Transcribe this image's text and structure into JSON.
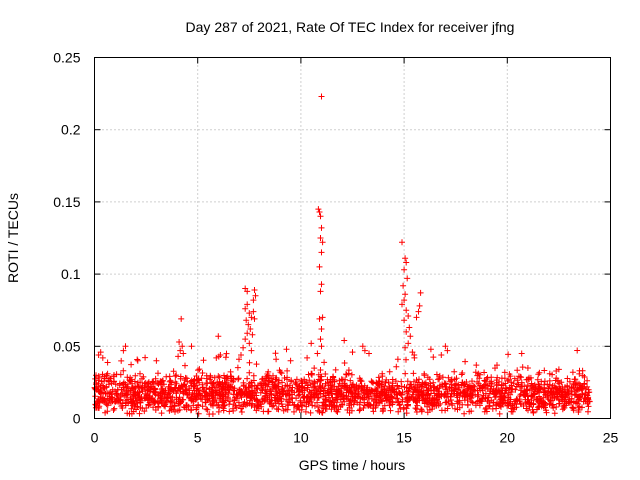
{
  "chart_data": {
    "type": "scatter",
    "title": "Day 287 of 2021, Rate Of TEC Index for receiver jfng",
    "xlabel": "GPS time / hours",
    "ylabel": "ROTI / TECUs",
    "xlim": [
      0,
      25
    ],
    "ylim": [
      0,
      0.25
    ],
    "xticks": [
      0,
      5,
      10,
      15,
      20,
      25
    ],
    "xtick_labels": [
      "0",
      "5",
      "10",
      "15",
      "20",
      "25"
    ],
    "yticks": [
      0,
      0.05,
      0.1,
      0.15,
      0.2,
      0.25
    ],
    "ytick_labels": [
      "0",
      "0.05",
      "0.1",
      "0.15",
      "0.2",
      "0.25"
    ],
    "grid": true,
    "marker": "+",
    "color": "#ff0000",
    "series": [
      {
        "name": "ROTI",
        "generated_background": {
          "x_range": [
            0,
            24
          ],
          "base": 0.017,
          "spread": 0.009,
          "count": 2200
        },
        "points": [
          [
            11.0,
            0.223
          ],
          [
            10.85,
            0.145
          ],
          [
            10.9,
            0.143
          ],
          [
            10.95,
            0.14
          ],
          [
            11.0,
            0.132
          ],
          [
            10.95,
            0.125
          ],
          [
            11.05,
            0.122
          ],
          [
            11.0,
            0.115
          ],
          [
            10.9,
            0.105
          ],
          [
            11.0,
            0.093
          ],
          [
            10.95,
            0.088
          ],
          [
            11.05,
            0.07
          ],
          [
            10.9,
            0.069
          ],
          [
            11.0,
            0.062
          ],
          [
            10.95,
            0.055
          ],
          [
            11.0,
            0.05
          ],
          [
            10.8,
            0.045
          ],
          [
            10.5,
            0.052
          ],
          [
            10.3,
            0.042
          ],
          [
            14.9,
            0.122
          ],
          [
            15.05,
            0.111
          ],
          [
            15.1,
            0.108
          ],
          [
            15.0,
            0.103
          ],
          [
            15.15,
            0.097
          ],
          [
            14.95,
            0.092
          ],
          [
            15.05,
            0.086
          ],
          [
            15.0,
            0.082
          ],
          [
            14.9,
            0.079
          ],
          [
            15.1,
            0.075
          ],
          [
            15.2,
            0.071
          ],
          [
            15.0,
            0.068
          ],
          [
            15.25,
            0.063
          ],
          [
            15.1,
            0.06
          ],
          [
            15.3,
            0.057
          ],
          [
            15.2,
            0.052
          ],
          [
            15.05,
            0.049
          ],
          [
            15.4,
            0.046
          ],
          [
            15.6,
            0.07
          ],
          [
            15.8,
            0.087
          ],
          [
            15.75,
            0.078
          ],
          [
            15.7,
            0.074
          ],
          [
            14.7,
            0.041
          ],
          [
            15.5,
            0.042
          ],
          [
            7.3,
            0.09
          ],
          [
            7.4,
            0.088
          ],
          [
            7.75,
            0.089
          ],
          [
            7.8,
            0.085
          ],
          [
            7.7,
            0.082
          ],
          [
            7.4,
            0.079
          ],
          [
            7.3,
            0.076
          ],
          [
            7.5,
            0.073
          ],
          [
            7.6,
            0.07
          ],
          [
            7.35,
            0.068
          ],
          [
            7.45,
            0.065
          ],
          [
            7.55,
            0.062
          ],
          [
            7.4,
            0.059
          ],
          [
            7.3,
            0.055
          ],
          [
            7.5,
            0.052
          ],
          [
            7.2,
            0.049
          ],
          [
            7.6,
            0.047
          ],
          [
            7.7,
            0.074
          ],
          [
            7.75,
            0.069
          ],
          [
            7.65,
            0.058
          ],
          [
            7.1,
            0.044
          ],
          [
            7.0,
            0.041
          ],
          [
            4.2,
            0.069
          ],
          [
            4.1,
            0.053
          ],
          [
            4.25,
            0.05
          ],
          [
            4.15,
            0.047
          ],
          [
            4.3,
            0.045
          ],
          [
            4.05,
            0.043
          ],
          [
            6.0,
            0.057
          ],
          [
            6.1,
            0.044
          ],
          [
            5.9,
            0.042
          ],
          [
            4.7,
            0.05
          ],
          [
            12.1,
            0.054
          ],
          [
            13.0,
            0.05
          ],
          [
            13.1,
            0.047
          ],
          [
            12.5,
            0.046
          ],
          [
            13.3,
            0.045
          ],
          [
            16.3,
            0.048
          ],
          [
            17.0,
            0.05
          ],
          [
            17.1,
            0.047
          ],
          [
            16.8,
            0.044
          ],
          [
            20.7,
            0.045
          ],
          [
            19.5,
            0.037
          ],
          [
            21.0,
            0.035
          ],
          [
            22.5,
            0.034
          ],
          [
            1.5,
            0.05
          ],
          [
            1.4,
            0.047
          ],
          [
            0.3,
            0.046
          ],
          [
            0.2,
            0.044
          ],
          [
            0.4,
            0.042
          ],
          [
            2.1,
            0.04
          ],
          [
            9.3,
            0.048
          ],
          [
            9.5,
            0.04
          ],
          [
            8.8,
            0.041
          ],
          [
            3.0,
            0.04
          ],
          [
            18.5,
            0.037
          ],
          [
            23.5,
            0.033
          ]
        ]
      }
    ]
  }
}
